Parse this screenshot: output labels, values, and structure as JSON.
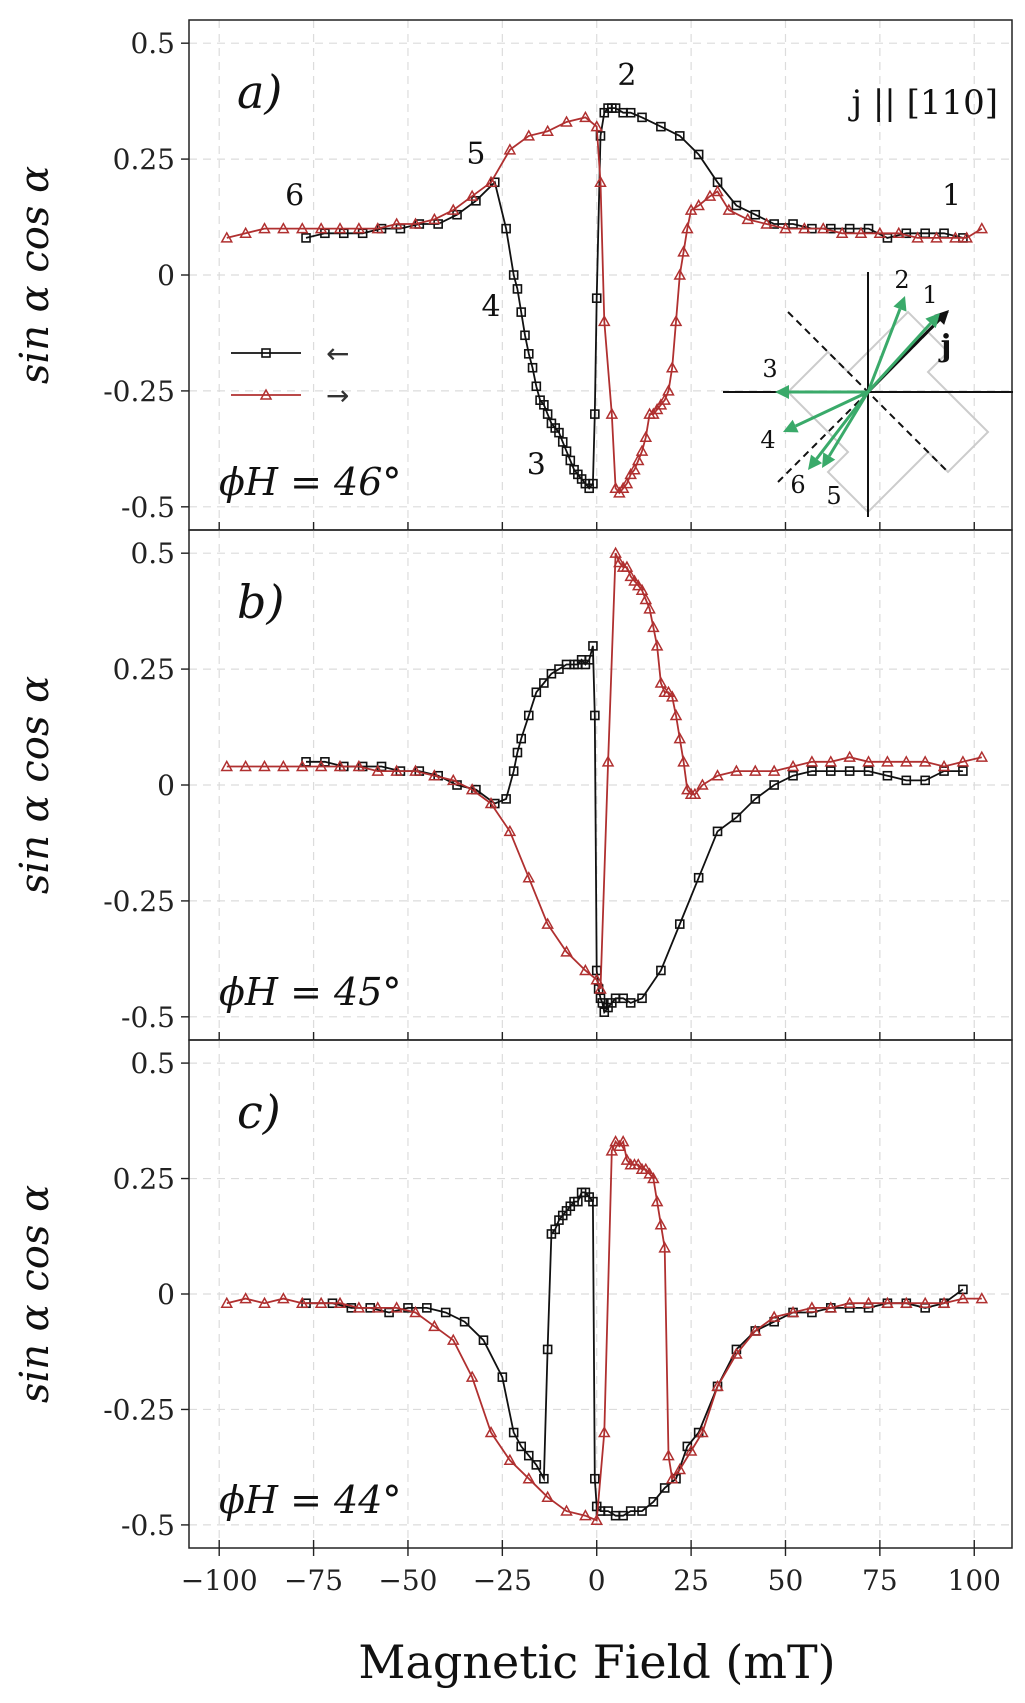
{
  "chart_data": [
    {
      "type": "line",
      "panel": "a",
      "panel_label": "a)",
      "phi_label": "ϕH = 46°",
      "annotation": "j || [110]",
      "xlim": [
        -108,
        110
      ],
      "ylim": [
        -0.55,
        0.55
      ],
      "yticks": [
        -0.5,
        -0.25,
        0,
        0.25,
        0.5
      ],
      "ytick_labels": [
        "-0.5",
        "-0.25",
        "0",
        "0.25",
        "0.5"
      ],
      "ylabel": "sin α cos α",
      "grid": true,
      "legend": {
        "position": "middle-left",
        "entries": [
          "←",
          "→"
        ]
      },
      "point_labels": [
        {
          "text": "1",
          "x": 94,
          "y": 0.15
        },
        {
          "text": "2",
          "x": 8,
          "y": 0.41
        },
        {
          "text": "3",
          "x": -16,
          "y": -0.43
        },
        {
          "text": "4",
          "x": -28,
          "y": -0.09
        },
        {
          "text": "5",
          "x": -32,
          "y": 0.24
        },
        {
          "text": "6",
          "x": -80,
          "y": 0.15
        }
      ],
      "inset": {
        "description": "magnetization directions",
        "arrow_labels": [
          "1",
          "2",
          "3",
          "4",
          "5",
          "6",
          "j"
        ]
      },
      "series": [
        {
          "name": "←",
          "color": "#111111",
          "marker": "square",
          "x": [
            97,
            92,
            87,
            82,
            77,
            72,
            67,
            62,
            57,
            52,
            47,
            42,
            37,
            32,
            27,
            22,
            17,
            12,
            9,
            7,
            5,
            4,
            3,
            2,
            1,
            0,
            -0.5,
            -1,
            -2,
            -3,
            -4,
            -5,
            -6,
            -7,
            -8,
            -9,
            -10,
            -11,
            -12,
            -13,
            -14,
            -15,
            -16,
            -17,
            -18,
            -19,
            -20,
            -21,
            -22,
            -24,
            -27,
            -32,
            -37,
            -42,
            -47,
            -52,
            -57,
            -62,
            -67,
            -72,
            -77
          ],
          "y": [
            0.08,
            0.09,
            0.09,
            0.09,
            0.08,
            0.1,
            0.1,
            0.1,
            0.1,
            0.11,
            0.11,
            0.13,
            0.15,
            0.2,
            0.26,
            0.3,
            0.32,
            0.34,
            0.35,
            0.35,
            0.36,
            0.36,
            0.36,
            0.35,
            0.3,
            -0.05,
            -0.3,
            -0.45,
            -0.46,
            -0.45,
            -0.44,
            -0.43,
            -0.42,
            -0.4,
            -0.38,
            -0.36,
            -0.34,
            -0.33,
            -0.32,
            -0.3,
            -0.28,
            -0.27,
            -0.24,
            -0.2,
            -0.17,
            -0.13,
            -0.08,
            -0.03,
            0.0,
            0.1,
            0.2,
            0.16,
            0.13,
            0.11,
            0.11,
            0.1,
            0.1,
            0.09,
            0.09,
            0.09,
            0.08
          ]
        },
        {
          "name": "→",
          "color": "#b03030",
          "marker": "triangle",
          "x": [
            -98,
            -93,
            -88,
            -83,
            -78,
            -73,
            -68,
            -63,
            -58,
            -53,
            -48,
            -43,
            -38,
            -33,
            -28,
            -23,
            -18,
            -13,
            -8,
            -3,
            0,
            1,
            2,
            4,
            5,
            6,
            7,
            8,
            9,
            10,
            11,
            12,
            13,
            14,
            15,
            16,
            17,
            18,
            19,
            20,
            21,
            22,
            23,
            24,
            25,
            27,
            30,
            32,
            35,
            40,
            45,
            50,
            55,
            60,
            65,
            70,
            75,
            80,
            85,
            90,
            95,
            98,
            102
          ],
          "y": [
            0.08,
            0.09,
            0.1,
            0.1,
            0.1,
            0.1,
            0.1,
            0.1,
            0.1,
            0.11,
            0.11,
            0.12,
            0.14,
            0.17,
            0.2,
            0.27,
            0.3,
            0.31,
            0.33,
            0.34,
            0.32,
            0.2,
            -0.1,
            -0.3,
            -0.46,
            -0.47,
            -0.46,
            -0.45,
            -0.43,
            -0.42,
            -0.4,
            -0.38,
            -0.35,
            -0.3,
            -0.3,
            -0.29,
            -0.28,
            -0.27,
            -0.25,
            -0.2,
            -0.1,
            0.0,
            0.05,
            0.1,
            0.14,
            0.15,
            0.17,
            0.18,
            0.14,
            0.12,
            0.11,
            0.1,
            0.1,
            0.1,
            0.09,
            0.09,
            0.09,
            0.09,
            0.08,
            0.08,
            0.08,
            0.08,
            0.1
          ]
        }
      ]
    },
    {
      "type": "line",
      "panel": "b",
      "panel_label": "b)",
      "phi_label": "ϕH = 45°",
      "xlim": [
        -108,
        110
      ],
      "ylim": [
        -0.55,
        0.55
      ],
      "yticks": [
        -0.5,
        -0.25,
        0,
        0.25,
        0.5
      ],
      "ytick_labels": [
        "-0.5",
        "-0.25",
        "0",
        "0.25",
        "0.5"
      ],
      "ylabel": "sin α cos α",
      "grid": true,
      "series": [
        {
          "name": "←",
          "color": "#111111",
          "marker": "square",
          "x": [
            97,
            92,
            87,
            82,
            77,
            72,
            67,
            62,
            57,
            52,
            47,
            42,
            37,
            32,
            27,
            22,
            17,
            12,
            9,
            7,
            5,
            4,
            3,
            2,
            1.5,
            1,
            0.5,
            0,
            -0.5,
            -1,
            -2,
            -3,
            -4,
            -5,
            -6,
            -8,
            -10,
            -12,
            -14,
            -16,
            -18,
            -20,
            -21,
            -22,
            -24,
            -27,
            -32,
            -37,
            -42,
            -47,
            -52,
            -57,
            -62,
            -67,
            -72,
            -77
          ],
          "y": [
            0.03,
            0.03,
            0.01,
            0.01,
            0.02,
            0.03,
            0.03,
            0.03,
            0.03,
            0.02,
            0.0,
            -0.03,
            -0.07,
            -0.1,
            -0.2,
            -0.3,
            -0.4,
            -0.46,
            -0.47,
            -0.46,
            -0.46,
            -0.47,
            -0.48,
            -0.49,
            -0.47,
            -0.46,
            -0.44,
            -0.4,
            0.15,
            0.3,
            0.27,
            0.26,
            0.27,
            0.26,
            0.26,
            0.26,
            0.25,
            0.24,
            0.22,
            0.2,
            0.15,
            0.1,
            0.07,
            0.03,
            -0.03,
            -0.04,
            -0.01,
            0.0,
            0.02,
            0.03,
            0.03,
            0.04,
            0.04,
            0.04,
            0.05,
            0.05
          ]
        },
        {
          "name": "→",
          "color": "#b03030",
          "marker": "triangle",
          "x": [
            -98,
            -93,
            -88,
            -83,
            -78,
            -73,
            -68,
            -63,
            -58,
            -53,
            -48,
            -43,
            -38,
            -33,
            -28,
            -23,
            -18,
            -13,
            -8,
            -3,
            0,
            1,
            3,
            5,
            6,
            7,
            8,
            9,
            10,
            11,
            12,
            13,
            14,
            15,
            16,
            17,
            18,
            19,
            20,
            21,
            22,
            23,
            24,
            25,
            26,
            28,
            32,
            37,
            42,
            47,
            52,
            57,
            62,
            67,
            72,
            77,
            82,
            87,
            92,
            97,
            102
          ],
          "y": [
            0.04,
            0.04,
            0.04,
            0.04,
            0.04,
            0.04,
            0.04,
            0.04,
            0.03,
            0.03,
            0.03,
            0.02,
            0.01,
            -0.01,
            -0.04,
            -0.1,
            -0.2,
            -0.3,
            -0.36,
            -0.4,
            -0.42,
            -0.44,
            0.05,
            0.5,
            0.48,
            0.47,
            0.47,
            0.45,
            0.44,
            0.43,
            0.42,
            0.4,
            0.38,
            0.34,
            0.3,
            0.22,
            0.2,
            0.2,
            0.19,
            0.15,
            0.1,
            0.05,
            -0.01,
            -0.02,
            -0.02,
            0.0,
            0.02,
            0.03,
            0.03,
            0.03,
            0.04,
            0.05,
            0.05,
            0.06,
            0.05,
            0.05,
            0.05,
            0.05,
            0.04,
            0.05,
            0.06
          ]
        }
      ]
    },
    {
      "type": "line",
      "panel": "c",
      "panel_label": "c)",
      "phi_label": "ϕH = 44°",
      "xlim": [
        -108,
        110
      ],
      "ylim": [
        -0.55,
        0.55
      ],
      "yticks": [
        -0.5,
        -0.25,
        0,
        0.25,
        0.5
      ],
      "ytick_labels": [
        "-0.5",
        "-0.25",
        "0",
        "0.25",
        "0.5"
      ],
      "ylabel": "sin α cos α",
      "xlabel": "Magnetic Field (mT)",
      "xticks": [
        -100,
        -75,
        -50,
        -25,
        0,
        25,
        50,
        75,
        100
      ],
      "xtick_labels": [
        "−100",
        "−75",
        "−50",
        "−25",
        "0",
        "25",
        "50",
        "75",
        "100"
      ],
      "grid": true,
      "series": [
        {
          "name": "←",
          "color": "#111111",
          "marker": "square",
          "x": [
            97,
            92,
            87,
            82,
            77,
            72,
            67,
            62,
            57,
            52,
            47,
            42,
            37,
            32,
            27,
            24,
            21,
            18,
            15,
            12,
            9,
            7,
            5,
            3,
            1,
            0,
            -0.5,
            -1,
            -2,
            -3,
            -4,
            -5,
            -6,
            -7,
            -8,
            -9,
            -10,
            -11,
            -12,
            -13,
            -14,
            -16,
            -18,
            -20,
            -22,
            -25,
            -30,
            -35,
            -40,
            -45,
            -50,
            -55,
            -60,
            -65,
            -70,
            -77
          ],
          "y": [
            0.01,
            -0.02,
            -0.03,
            -0.02,
            -0.02,
            -0.03,
            -0.03,
            -0.03,
            -0.04,
            -0.04,
            -0.06,
            -0.08,
            -0.12,
            -0.2,
            -0.3,
            -0.33,
            -0.4,
            -0.42,
            -0.45,
            -0.47,
            -0.47,
            -0.48,
            -0.48,
            -0.47,
            -0.47,
            -0.46,
            -0.4,
            0.2,
            0.21,
            0.22,
            0.22,
            0.2,
            0.2,
            0.19,
            0.18,
            0.17,
            0.16,
            0.14,
            0.13,
            -0.12,
            -0.4,
            -0.37,
            -0.35,
            -0.33,
            -0.3,
            -0.18,
            -0.1,
            -0.06,
            -0.04,
            -0.03,
            -0.03,
            -0.04,
            -0.03,
            -0.03,
            -0.02,
            -0.02
          ]
        },
        {
          "name": "→",
          "color": "#b03030",
          "marker": "triangle",
          "x": [
            -98,
            -93,
            -88,
            -83,
            -78,
            -73,
            -68,
            -63,
            -58,
            -53,
            -48,
            -43,
            -38,
            -33,
            -28,
            -23,
            -18,
            -13,
            -8,
            -3,
            0,
            2,
            4,
            5,
            6,
            7,
            8,
            9,
            10,
            11,
            12,
            13,
            14,
            15,
            16,
            17,
            18,
            19,
            20,
            22,
            25,
            28,
            32,
            37,
            42,
            47,
            52,
            57,
            62,
            67,
            72,
            77,
            82,
            87,
            92,
            97,
            102
          ],
          "y": [
            -0.02,
            -0.01,
            -0.02,
            -0.01,
            -0.02,
            -0.02,
            -0.02,
            -0.03,
            -0.03,
            -0.03,
            -0.04,
            -0.07,
            -0.1,
            -0.18,
            -0.3,
            -0.36,
            -0.4,
            -0.44,
            -0.47,
            -0.48,
            -0.49,
            -0.3,
            0.31,
            0.33,
            0.32,
            0.33,
            0.29,
            0.28,
            0.28,
            0.28,
            0.27,
            0.27,
            0.26,
            0.25,
            0.2,
            0.15,
            0.1,
            -0.35,
            -0.4,
            -0.38,
            -0.34,
            -0.3,
            -0.2,
            -0.13,
            -0.08,
            -0.05,
            -0.04,
            -0.03,
            -0.03,
            -0.02,
            -0.02,
            -0.02,
            -0.02,
            -0.02,
            -0.02,
            -0.01,
            -0.01
          ]
        }
      ]
    }
  ]
}
